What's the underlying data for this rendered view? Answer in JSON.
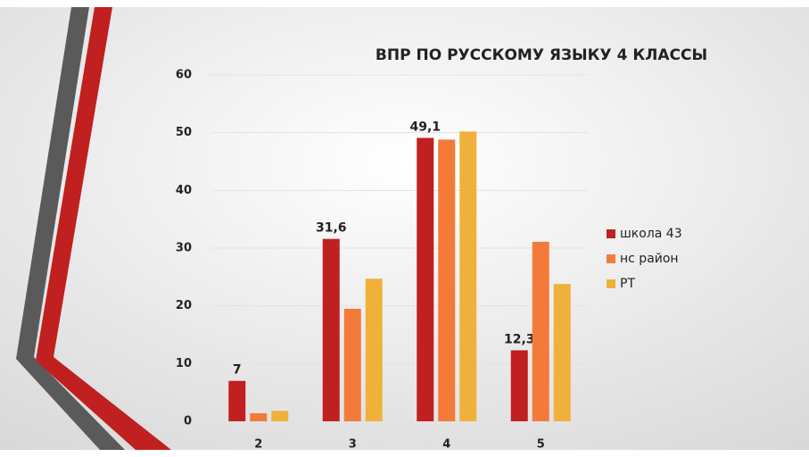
{
  "chart_data": {
    "type": "bar",
    "title": "ВПР ПО РУССКОМУ ЯЗЫКУ 4 КЛАССЫ",
    "categories": [
      "2",
      "3",
      "4",
      "5"
    ],
    "series": [
      {
        "name": "школа 43",
        "color": "#c0201f",
        "values": [
          7,
          31.6,
          49.1,
          12.3
        ],
        "value_labels": [
          "7",
          "31,6",
          "49,1",
          "12,3"
        ]
      },
      {
        "name": "нс район",
        "color": "#f47a3a",
        "values": [
          1.4,
          19.5,
          48.8,
          31.1
        ]
      },
      {
        "name": "РТ",
        "color": "#f0b13a",
        "values": [
          1.8,
          24.7,
          50.2,
          23.8
        ]
      }
    ],
    "ylim": [
      0,
      60
    ],
    "yticks": [
      0,
      10,
      20,
      30,
      40,
      50,
      60
    ],
    "grid": true,
    "legend": "right"
  }
}
